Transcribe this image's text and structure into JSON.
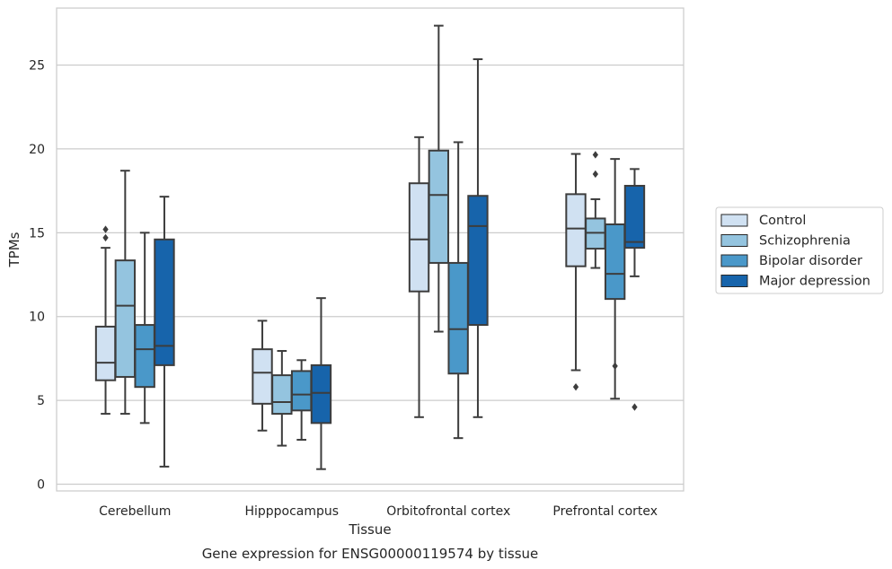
{
  "caption": "Gene expression for ENSG00000119574 by tissue",
  "chart_data": {
    "type": "boxplot",
    "xlabel": "Tissue",
    "ylabel": "TPMs",
    "ylim": [
      -0.4,
      28.4
    ],
    "yticks": [
      0,
      5,
      10,
      15,
      20,
      25
    ],
    "grid": true,
    "legend_position": "right",
    "categories": [
      "Cerebellum",
      "Hipppocampus",
      "Orbitofrontal cortex",
      "Prefrontal cortex"
    ],
    "series": [
      {
        "name": "Control",
        "color": "#d0e1f2",
        "boxes": [
          {
            "whislo": 4.2,
            "q1": 6.2,
            "med": 7.25,
            "q3": 9.4,
            "whishi": 14.1,
            "fliers": [
              14.7,
              15.2
            ]
          },
          {
            "whislo": 3.2,
            "q1": 4.8,
            "med": 6.65,
            "q3": 8.05,
            "whishi": 9.75,
            "fliers": []
          },
          {
            "whislo": 4.0,
            "q1": 11.5,
            "med": 14.6,
            "q3": 17.95,
            "whishi": 20.7,
            "fliers": []
          },
          {
            "whislo": 6.8,
            "q1": 13.0,
            "med": 15.25,
            "q3": 17.3,
            "whishi": 19.7,
            "fliers": [
              5.8
            ]
          }
        ]
      },
      {
        "name": "Schizophrenia",
        "color": "#94c4df",
        "boxes": [
          {
            "whislo": 4.2,
            "q1": 6.4,
            "med": 10.65,
            "q3": 13.35,
            "whishi": 18.7,
            "fliers": []
          },
          {
            "whislo": 2.3,
            "q1": 4.2,
            "med": 4.9,
            "q3": 6.5,
            "whishi": 7.95,
            "fliers": []
          },
          {
            "whislo": 9.1,
            "q1": 13.2,
            "med": 17.25,
            "q3": 19.9,
            "whishi": 27.35,
            "fliers": []
          },
          {
            "whislo": 12.9,
            "q1": 14.05,
            "med": 15.0,
            "q3": 15.85,
            "whishi": 17.0,
            "fliers": [
              18.5,
              19.65
            ]
          }
        ]
      },
      {
        "name": "Bipolar disorder",
        "color": "#4a98c9",
        "boxes": [
          {
            "whislo": 3.65,
            "q1": 5.8,
            "med": 8.05,
            "q3": 9.5,
            "whishi": 15.0,
            "fliers": []
          },
          {
            "whislo": 2.65,
            "q1": 4.4,
            "med": 5.35,
            "q3": 6.75,
            "whishi": 7.4,
            "fliers": []
          },
          {
            "whislo": 2.75,
            "q1": 6.6,
            "med": 9.25,
            "q3": 13.2,
            "whishi": 20.4,
            "fliers": []
          },
          {
            "whislo": 5.1,
            "q1": 11.05,
            "med": 12.55,
            "q3": 15.5,
            "whishi": 19.4,
            "fliers": [
              7.05
            ]
          }
        ]
      },
      {
        "name": "Major depression",
        "color": "#1764ab",
        "boxes": [
          {
            "whislo": 1.05,
            "q1": 7.1,
            "med": 8.25,
            "q3": 14.6,
            "whishi": 17.15,
            "fliers": []
          },
          {
            "whislo": 0.9,
            "q1": 3.65,
            "med": 5.45,
            "q3": 7.1,
            "whishi": 11.1,
            "fliers": []
          },
          {
            "whislo": 4.0,
            "q1": 9.5,
            "med": 15.4,
            "q3": 17.2,
            "whishi": 25.35,
            "fliers": []
          },
          {
            "whislo": 12.4,
            "q1": 14.1,
            "med": 14.45,
            "q3": 17.8,
            "whishi": 18.8,
            "fliers": [
              4.6
            ]
          }
        ]
      }
    ]
  }
}
